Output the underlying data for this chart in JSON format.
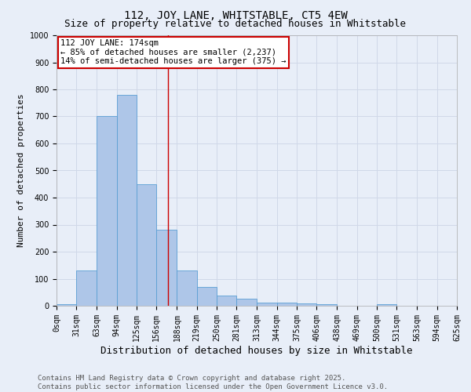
{
  "title": "112, JOY LANE, WHITSTABLE, CT5 4EW",
  "subtitle": "Size of property relative to detached houses in Whitstable",
  "xlabel": "Distribution of detached houses by size in Whitstable",
  "ylabel": "Number of detached properties",
  "bin_edges": [
    0,
    31,
    63,
    94,
    125,
    156,
    188,
    219,
    250,
    281,
    313,
    344,
    375,
    406,
    438,
    469,
    500,
    531,
    563,
    594,
    625
  ],
  "bar_heights": [
    5,
    130,
    700,
    780,
    450,
    280,
    130,
    70,
    38,
    25,
    12,
    12,
    10,
    5,
    0,
    0,
    5,
    0,
    0,
    0
  ],
  "bar_color": "#aec6e8",
  "bar_edgecolor": "#5a9fd4",
  "property_size": 174,
  "vline_color": "#cc0000",
  "annotation_line1": "112 JOY LANE: 174sqm",
  "annotation_line2": "← 85% of detached houses are smaller (2,237)",
  "annotation_line3": "14% of semi-detached houses are larger (375) →",
  "annotation_box_color": "#cc0000",
  "annotation_bg": "#ffffff",
  "ylim": [
    0,
    1000
  ],
  "yticks": [
    0,
    100,
    200,
    300,
    400,
    500,
    600,
    700,
    800,
    900,
    1000
  ],
  "grid_color": "#d0d8e8",
  "bg_color": "#e8eef8",
  "footer_text": "Contains HM Land Registry data © Crown copyright and database right 2025.\nContains public sector information licensed under the Open Government Licence v3.0.",
  "title_fontsize": 10,
  "subtitle_fontsize": 9,
  "xlabel_fontsize": 9,
  "ylabel_fontsize": 8,
  "tick_fontsize": 7,
  "annotation_fontsize": 7.5,
  "footer_fontsize": 6.5
}
